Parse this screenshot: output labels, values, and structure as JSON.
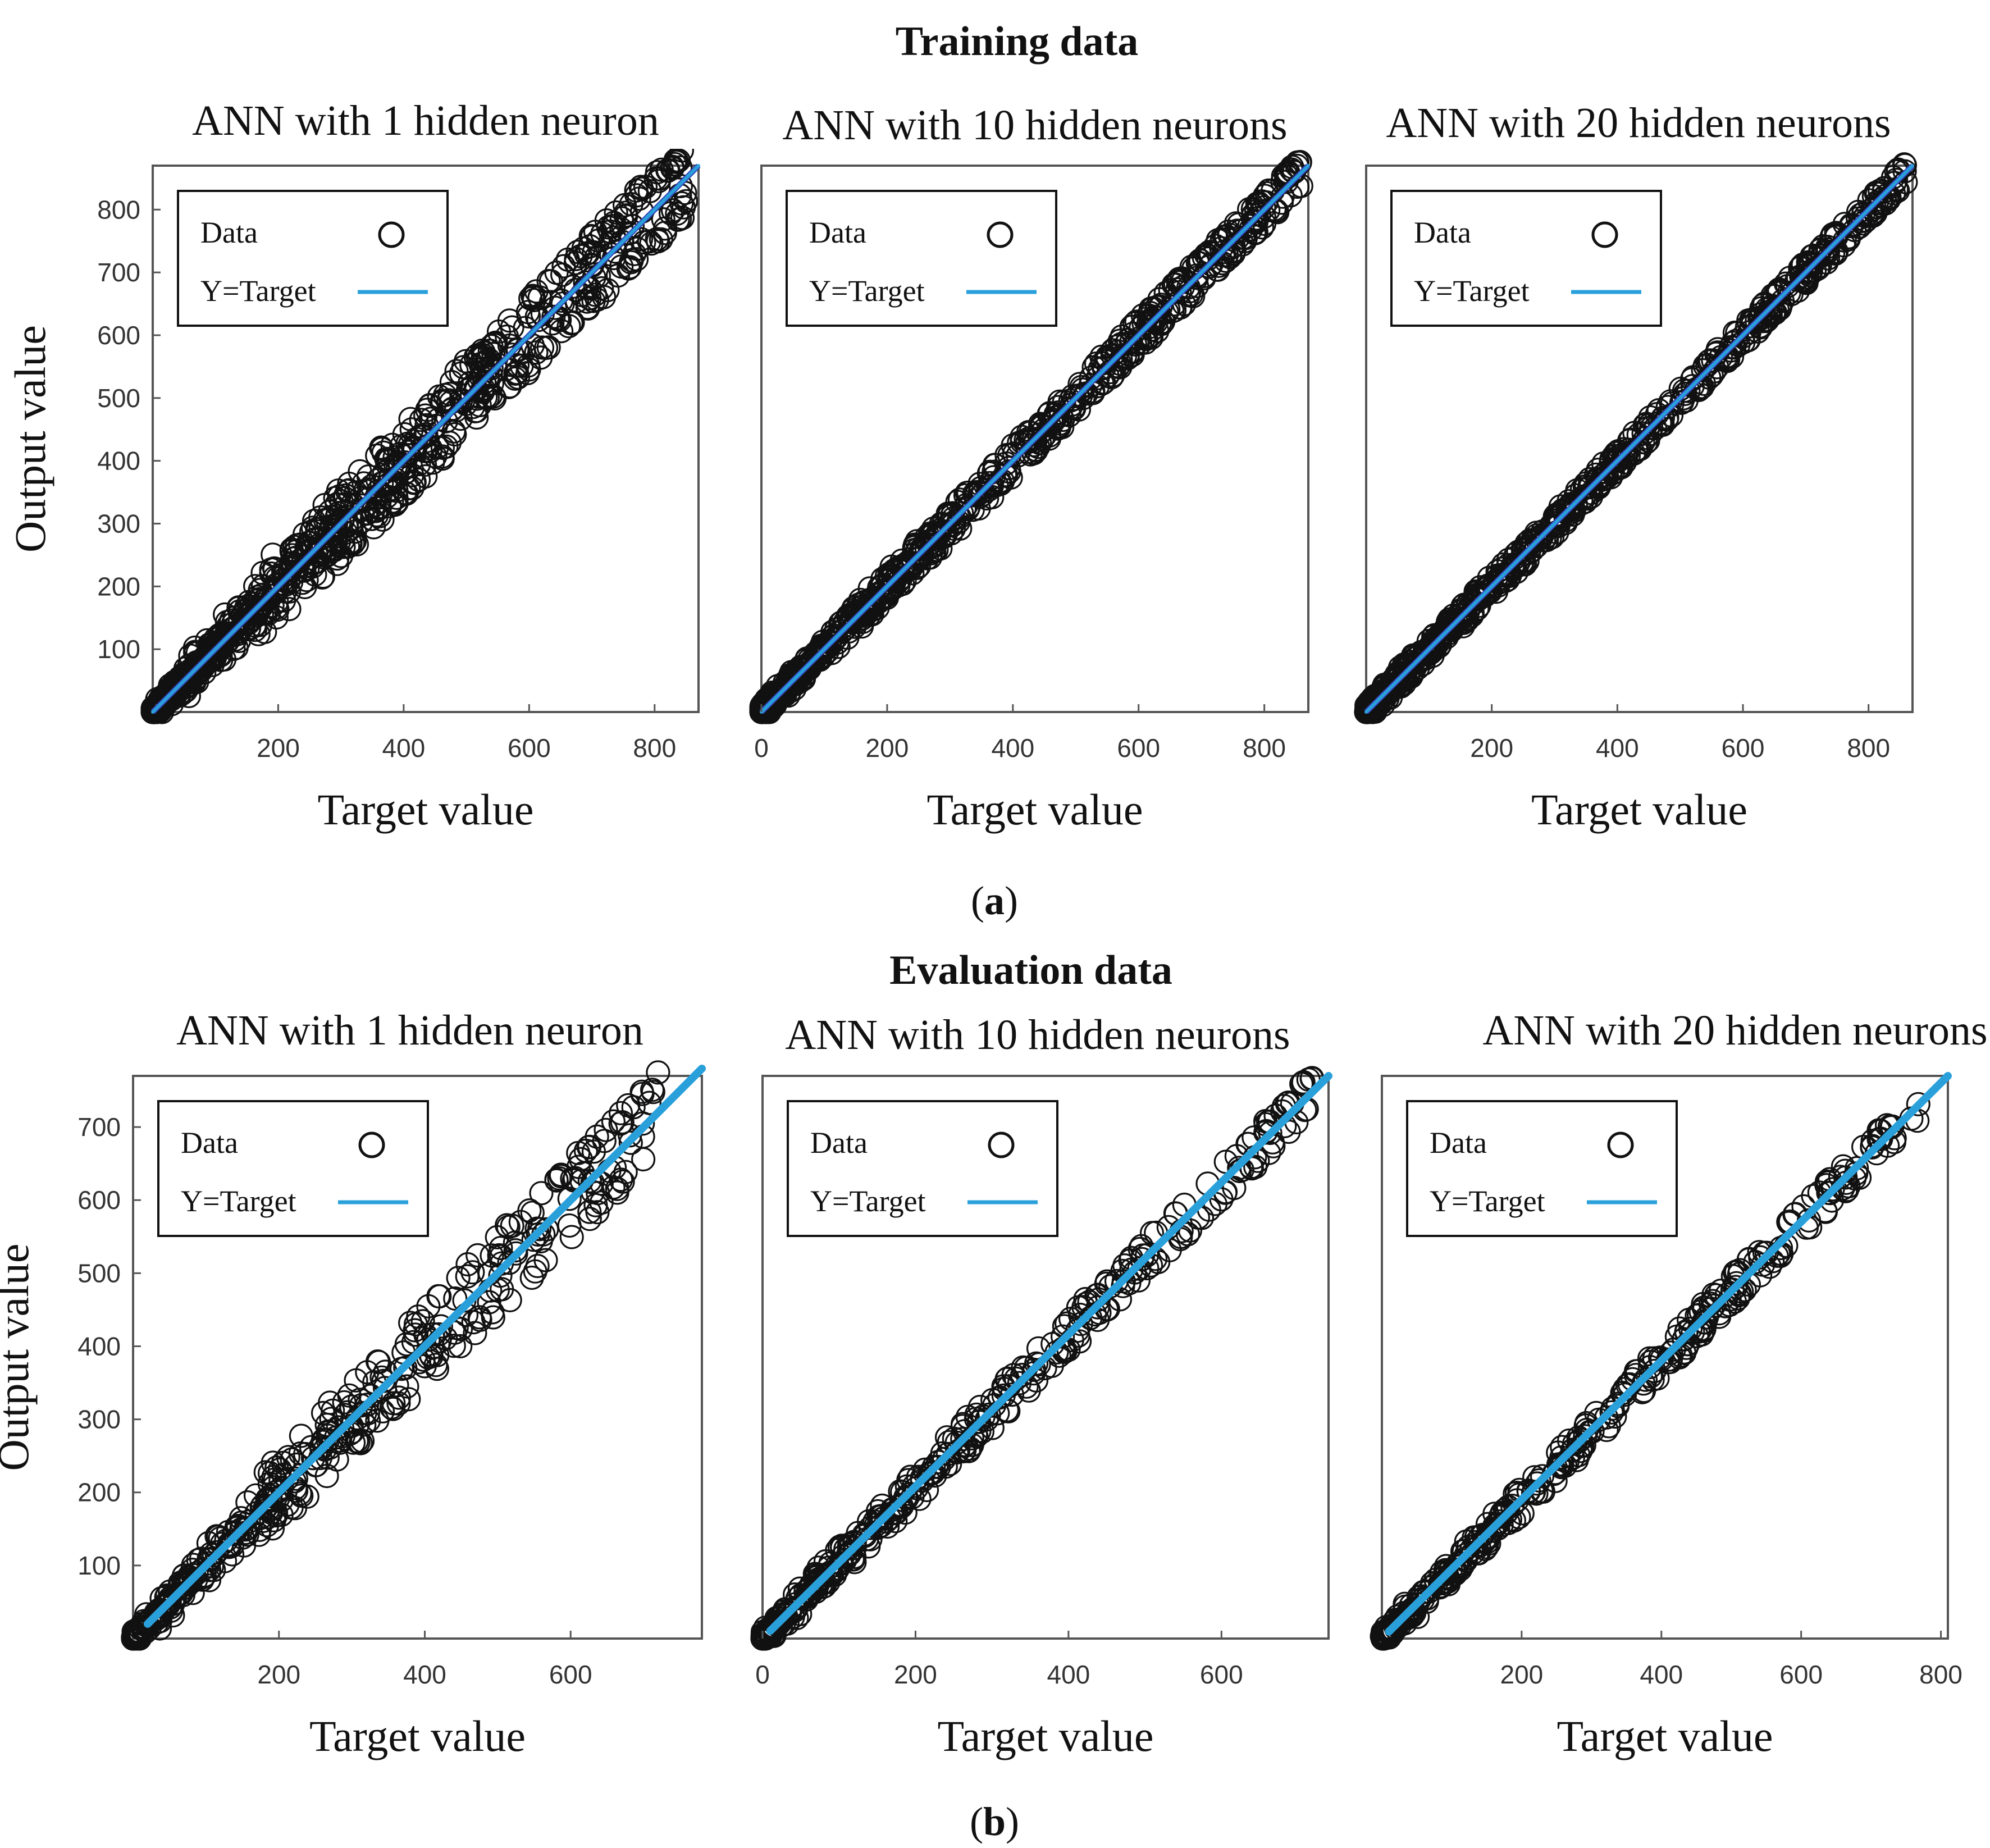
{
  "figure": {
    "caption_a_letter": "a",
    "caption_b_letter": "b",
    "paren_open": "(",
    "paren_close": ")"
  },
  "chart_data": [
    {
      "type": "scatter",
      "section": "Training data",
      "title": "ANN with 1 hidden neuron",
      "xlabel": "Target value",
      "ylabel": "Output value",
      "xlim": [
        0,
        870
      ],
      "ylim": [
        0,
        870
      ],
      "xticks": [
        200,
        400,
        600,
        800
      ],
      "yticks": [
        100,
        200,
        300,
        400,
        500,
        600,
        700,
        800
      ],
      "legend": {
        "position": "top-left",
        "entries": [
          "Data",
          "Y=Target"
        ]
      },
      "fit_line": {
        "x": [
          0,
          870
        ],
        "y": [
          0,
          870
        ]
      },
      "scatter": {
        "x_range": [
          0,
          850
        ],
        "point_count": 800,
        "spread": 0.09,
        "max_dev": 60
      }
    },
    {
      "type": "scatter",
      "section": "Training data",
      "title": "ANN with 10 hidden neurons",
      "xlabel": "Target value",
      "ylabel": "",
      "xlim": [
        0,
        870
      ],
      "ylim": [
        0,
        870
      ],
      "xticks": [
        0,
        200,
        400,
        600,
        800
      ],
      "yticks": [],
      "legend": {
        "position": "top-left",
        "entries": [
          "Data",
          "Y=Target"
        ]
      },
      "fit_line": {
        "x": [
          0,
          870
        ],
        "y": [
          0,
          870
        ]
      },
      "scatter": {
        "x_range": [
          0,
          860
        ],
        "point_count": 700,
        "spread": 0.035,
        "max_dev": 25
      }
    },
    {
      "type": "scatter",
      "section": "Training data",
      "title": "ANN with 20 hidden neurons",
      "xlabel": "Target value",
      "ylabel": "",
      "xlim": [
        0,
        870
      ],
      "ylim": [
        0,
        870
      ],
      "xticks": [
        200,
        400,
        600,
        800
      ],
      "yticks": [],
      "legend": {
        "position": "top-left",
        "entries": [
          "Data",
          "Y=Target"
        ]
      },
      "fit_line": {
        "x": [
          0,
          870
        ],
        "y": [
          0,
          870
        ]
      },
      "scatter": {
        "x_range": [
          0,
          860
        ],
        "point_count": 650,
        "spread": 0.025,
        "max_dev": 18
      }
    },
    {
      "type": "scatter",
      "section": "Evaluation data",
      "title": "ANN with 1 hidden neuron",
      "xlabel": "Target value",
      "ylabel": "Output value",
      "xlim": [
        0,
        780
      ],
      "ylim": [
        0,
        770
      ],
      "xticks": [
        200,
        400,
        600
      ],
      "yticks": [
        100,
        200,
        300,
        400,
        500,
        600,
        700
      ],
      "legend": {
        "position": "top-left",
        "entries": [
          "Data",
          "Y=Target"
        ]
      },
      "fit_line": {
        "x": [
          20,
          780
        ],
        "y": [
          20,
          780
        ]
      },
      "scatter": {
        "x_range": [
          0,
          720
        ],
        "point_count": 420,
        "spread": 0.09,
        "max_dev": 55
      }
    },
    {
      "type": "scatter",
      "section": "Evaluation data",
      "title": "ANN with 10 hidden neurons",
      "xlabel": "Target value",
      "ylabel": "",
      "xlim": [
        0,
        740
      ],
      "ylim": [
        0,
        740
      ],
      "xticks": [
        0,
        200,
        400,
        600
      ],
      "yticks": [],
      "legend": {
        "position": "top-left",
        "entries": [
          "Data",
          "Y=Target"
        ]
      },
      "fit_line": {
        "x": [
          10,
          740
        ],
        "y": [
          10,
          740
        ]
      },
      "scatter": {
        "x_range": [
          0,
          720
        ],
        "point_count": 380,
        "spread": 0.04,
        "max_dev": 25
      }
    },
    {
      "type": "scatter",
      "section": "Evaluation data",
      "title": "ANN with 20 hidden neurons",
      "xlabel": "Target value",
      "ylabel": "",
      "xlim": [
        0,
        810
      ],
      "ylim": [
        0,
        810
      ],
      "xticks": [
        200,
        400,
        600,
        800
      ],
      "yticks": [],
      "legend": {
        "position": "top-left",
        "entries": [
          "Data",
          "Y=Target"
        ]
      },
      "fit_line": {
        "x": [
          10,
          810
        ],
        "y": [
          10,
          810
        ]
      },
      "scatter": {
        "x_range": [
          0,
          770
        ],
        "point_count": 380,
        "spread": 0.035,
        "max_dev": 22
      }
    }
  ],
  "colors": {
    "fit_line": "#2aa0db",
    "fit_line_dark": "#3344bb",
    "marker": "#111111",
    "axis": "#555555"
  }
}
